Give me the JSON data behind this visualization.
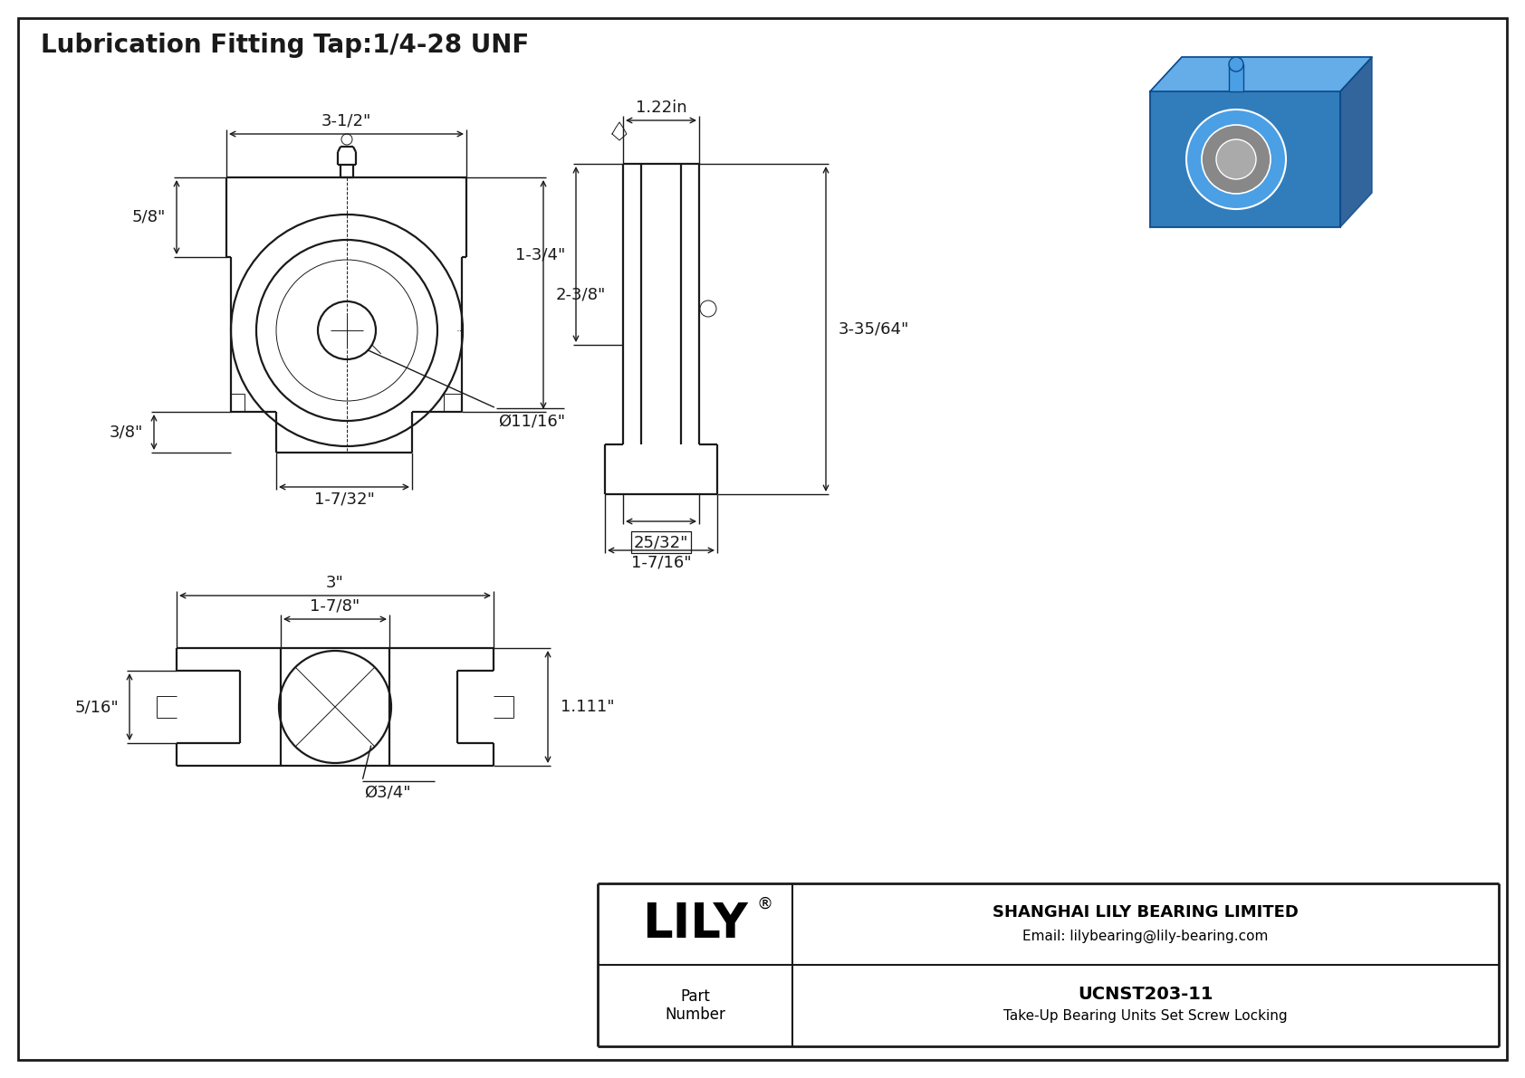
{
  "title": "Lubrication Fitting Tap:1/4-28 UNF",
  "line_color": "#1a1a1a",
  "dim_color": "#1a1a1a",
  "title_fontsize": 20,
  "dim_fontsize": 13,
  "company": "SHANGHAI LILY BEARING LIMITED",
  "email": "Email: lilybearing@lily-bearing.com",
  "part_label": "Part\nNumber",
  "part_number": "UCNST203-11",
  "part_desc": "Take-Up Bearing Units Set Screw Locking",
  "dims": {
    "top_width": "3-1/2\"",
    "height_5_8": "5/8\"",
    "height_2_3_8": "2-3/8\"",
    "height_3_8": "3/8\"",
    "width_1_7_32": "1-7/32\"",
    "dia_11_16": "Ø11/16\"",
    "width_3": "3\"",
    "width_1_7_8": "1-7/8\"",
    "height_1_111": "1.111\"",
    "height_5_16": "5/16\"",
    "dia_3_4": "Ø3/4\"",
    "side_width_1_22": "1.22in",
    "side_height_1_3_4": "1-3/4\"",
    "side_height_3_35_64": "3-35/64\"",
    "side_width_25_32": "25/32\"",
    "side_width_1_7_16": "1-7/16\""
  }
}
